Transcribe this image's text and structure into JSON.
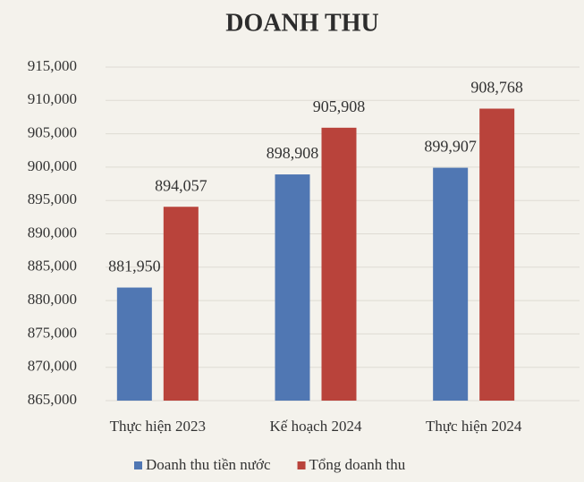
{
  "chart_data": {
    "type": "bar",
    "title": "DOANH THU",
    "categories": [
      "Thực hiện 2023",
      "Kế hoạch 2024",
      "Thực hiện 2024"
    ],
    "series": [
      {
        "name": "Doanh thu tiền nước",
        "color": "#5077b3",
        "values": [
          881950,
          898908,
          899907
        ],
        "value_labels": [
          "881,950",
          "898,908",
          "899,907"
        ]
      },
      {
        "name": "Tổng doanh thu",
        "color": "#b9433b",
        "values": [
          894057,
          905908,
          908768
        ],
        "value_labels": [
          "894,057",
          "905,908",
          "908,768"
        ]
      }
    ],
    "ylim": [
      865000,
      915000
    ],
    "yticks": [
      {
        "value": 865000,
        "label": "865,000"
      },
      {
        "value": 870000,
        "label": "870,000"
      },
      {
        "value": 875000,
        "label": "875,000"
      },
      {
        "value": 880000,
        "label": "880,000"
      },
      {
        "value": 885000,
        "label": "885,000"
      },
      {
        "value": 890000,
        "label": "890,000"
      },
      {
        "value": 895000,
        "label": "895,000"
      },
      {
        "value": 900000,
        "label": "900,000"
      },
      {
        "value": 905000,
        "label": "905,000"
      },
      {
        "value": 910000,
        "label": "910,000"
      },
      {
        "value": 915000,
        "label": "915,000"
      }
    ],
    "grid": true,
    "legend": "bottom"
  }
}
